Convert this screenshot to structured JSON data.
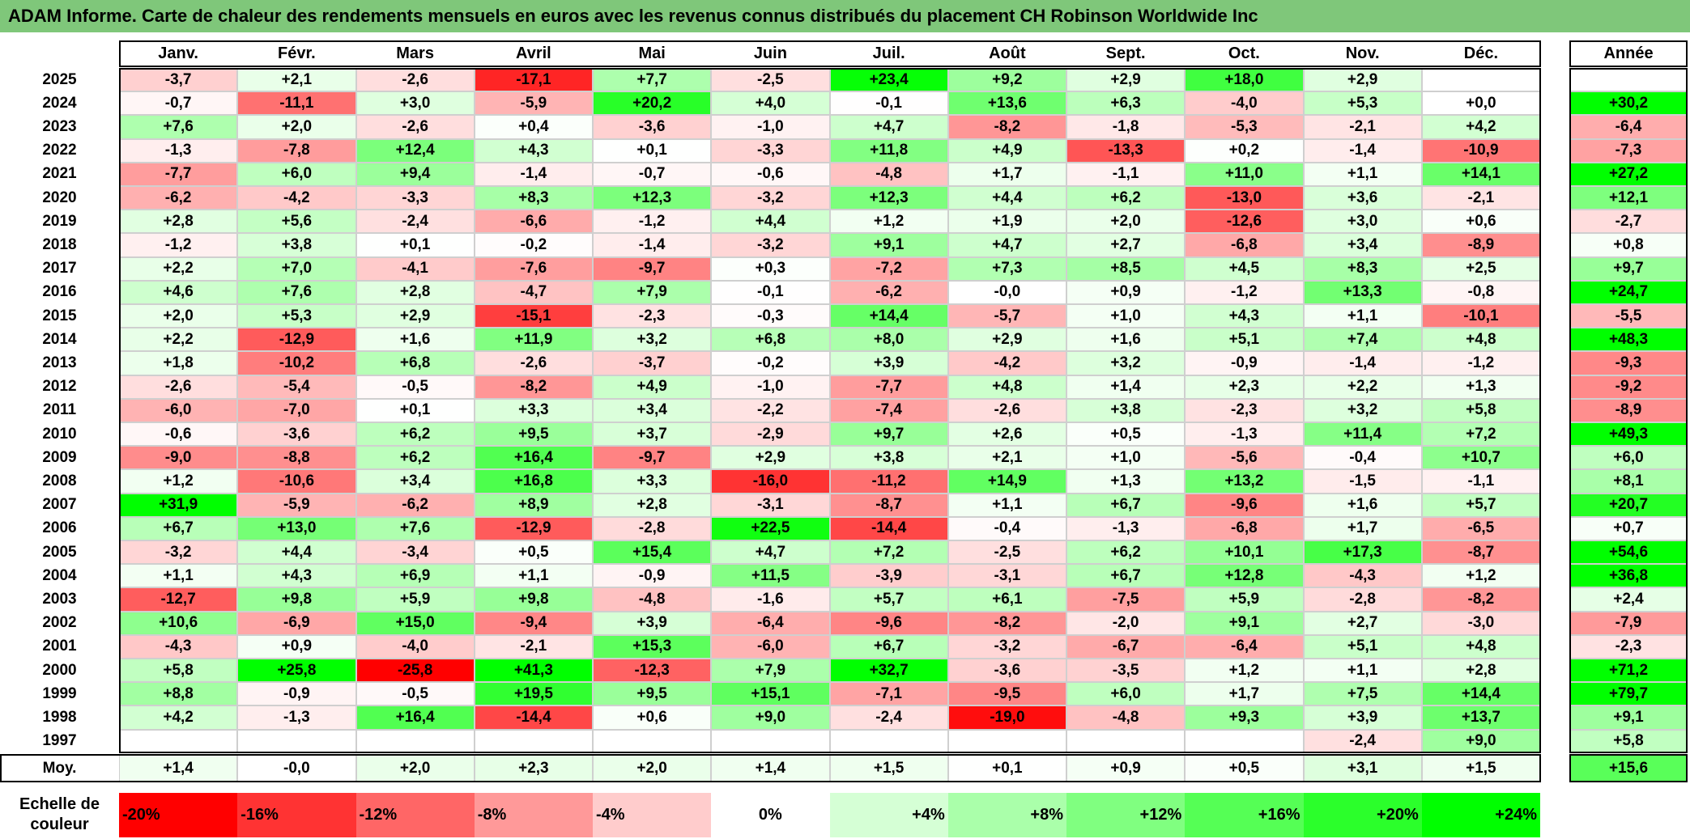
{
  "title": "ADAM Informe. Carte de chaleur des rendements mensuels en euros avec les revenus connus distribués du placement CH Robinson Worldwide Inc",
  "chart_data": {
    "type": "heatmap",
    "columns": [
      "Janv.",
      "Févr.",
      "Mars",
      "Avril",
      "Mai",
      "Juin",
      "Juil.",
      "Août",
      "Sept.",
      "Oct.",
      "Nov.",
      "Déc."
    ],
    "year_header": "Année",
    "rows": [
      {
        "year": "2025",
        "months": [
          "-3,7",
          "+2,1",
          "-2,6",
          "-17,1",
          "+7,7",
          "-2,5",
          "+23,4",
          "+9,2",
          "+2,9",
          "+18,0",
          "+2,9",
          ""
        ],
        "annual": ""
      },
      {
        "year": "2024",
        "months": [
          "-0,7",
          "-11,1",
          "+3,0",
          "-5,9",
          "+20,2",
          "+4,0",
          "-0,1",
          "+13,6",
          "+6,3",
          "-4,0",
          "+5,3",
          "+0,0"
        ],
        "annual": "+30,2"
      },
      {
        "year": "2023",
        "months": [
          "+7,6",
          "+2,0",
          "-2,6",
          "+0,4",
          "-3,6",
          "-1,0",
          "+4,7",
          "-8,2",
          "-1,8",
          "-5,3",
          "-2,1",
          "+4,2"
        ],
        "annual": "-6,4"
      },
      {
        "year": "2022",
        "months": [
          "-1,3",
          "-7,8",
          "+12,4",
          "+4,3",
          "+0,1",
          "-3,3",
          "+11,8",
          "+4,9",
          "-13,3",
          "+0,2",
          "-1,4",
          "-10,9"
        ],
        "annual": "-7,3"
      },
      {
        "year": "2021",
        "months": [
          "-7,7",
          "+6,0",
          "+9,4",
          "-1,4",
          "-0,7",
          "-0,6",
          "-4,8",
          "+1,7",
          "-1,1",
          "+11,0",
          "+1,1",
          "+14,1"
        ],
        "annual": "+27,2"
      },
      {
        "year": "2020",
        "months": [
          "-6,2",
          "-4,2",
          "-3,3",
          "+8,3",
          "+12,3",
          "-3,2",
          "+12,3",
          "+4,4",
          "+6,2",
          "-13,0",
          "+3,6",
          "-2,1"
        ],
        "annual": "+12,1"
      },
      {
        "year": "2019",
        "months": [
          "+2,8",
          "+5,6",
          "-2,4",
          "-6,6",
          "-1,2",
          "+4,4",
          "+1,2",
          "+1,9",
          "+2,0",
          "-12,6",
          "+3,0",
          "+0,6"
        ],
        "annual": "-2,7"
      },
      {
        "year": "2018",
        "months": [
          "-1,2",
          "+3,8",
          "+0,1",
          "-0,2",
          "-1,4",
          "-3,2",
          "+9,1",
          "+4,7",
          "+2,7",
          "-6,8",
          "+3,4",
          "-8,9"
        ],
        "annual": "+0,8"
      },
      {
        "year": "2017",
        "months": [
          "+2,2",
          "+7,0",
          "-4,1",
          "-7,6",
          "-9,7",
          "+0,3",
          "-7,2",
          "+7,3",
          "+8,5",
          "+4,5",
          "+8,3",
          "+2,5"
        ],
        "annual": "+9,7"
      },
      {
        "year": "2016",
        "months": [
          "+4,6",
          "+7,6",
          "+2,8",
          "-4,7",
          "+7,9",
          "-0,1",
          "-6,2",
          "-0,0",
          "+0,9",
          "-1,2",
          "+13,3",
          "-0,8"
        ],
        "annual": "+24,7"
      },
      {
        "year": "2015",
        "months": [
          "+2,0",
          "+5,3",
          "+2,9",
          "-15,1",
          "-2,3",
          "-0,3",
          "+14,4",
          "-5,7",
          "+1,0",
          "+4,3",
          "+1,1",
          "-10,1"
        ],
        "annual": "-5,5"
      },
      {
        "year": "2014",
        "months": [
          "+2,2",
          "-12,9",
          "+1,6",
          "+11,9",
          "+3,2",
          "+6,8",
          "+8,0",
          "+2,9",
          "+1,6",
          "+5,1",
          "+7,4",
          "+4,8"
        ],
        "annual": "+48,3"
      },
      {
        "year": "2013",
        "months": [
          "+1,8",
          "-10,2",
          "+6,8",
          "-2,6",
          "-3,7",
          "-0,2",
          "+3,9",
          "-4,2",
          "+3,2",
          "-0,9",
          "-1,4",
          "-1,2"
        ],
        "annual": "-9,3"
      },
      {
        "year": "2012",
        "months": [
          "-2,6",
          "-5,4",
          "-0,5",
          "-8,2",
          "+4,9",
          "-1,0",
          "-7,7",
          "+4,8",
          "+1,4",
          "+2,3",
          "+2,2",
          "+1,3"
        ],
        "annual": "-9,2"
      },
      {
        "year": "2011",
        "months": [
          "-6,0",
          "-7,0",
          "+0,1",
          "+3,3",
          "+3,4",
          "-2,2",
          "-7,4",
          "-2,6",
          "+3,8",
          "-2,3",
          "+3,2",
          "+5,8"
        ],
        "annual": "-8,9"
      },
      {
        "year": "2010",
        "months": [
          "-0,6",
          "-3,6",
          "+6,2",
          "+9,5",
          "+3,7",
          "-2,9",
          "+9,7",
          "+2,6",
          "+0,5",
          "-1,3",
          "+11,4",
          "+7,2"
        ],
        "annual": "+49,3"
      },
      {
        "year": "2009",
        "months": [
          "-9,0",
          "-8,8",
          "+6,2",
          "+16,4",
          "-9,7",
          "+2,9",
          "+3,8",
          "+2,1",
          "+1,0",
          "-5,6",
          "-0,4",
          "+10,7"
        ],
        "annual": "+6,0"
      },
      {
        "year": "2008",
        "months": [
          "+1,2",
          "-10,6",
          "+3,4",
          "+16,8",
          "+3,3",
          "-16,0",
          "-11,2",
          "+14,9",
          "+1,3",
          "+13,2",
          "-1,5",
          "-1,1"
        ],
        "annual": "+8,1"
      },
      {
        "year": "2007",
        "months": [
          "+31,9",
          "-5,9",
          "-6,2",
          "+8,9",
          "+2,8",
          "-3,1",
          "-8,7",
          "+1,1",
          "+6,7",
          "-9,6",
          "+1,6",
          "+5,7"
        ],
        "annual": "+20,7"
      },
      {
        "year": "2006",
        "months": [
          "+6,7",
          "+13,0",
          "+7,6",
          "-12,9",
          "-2,8",
          "+22,5",
          "-14,4",
          "-0,4",
          "-1,3",
          "-6,8",
          "+1,7",
          "-6,5"
        ],
        "annual": "+0,7"
      },
      {
        "year": "2005",
        "months": [
          "-3,2",
          "+4,4",
          "-3,4",
          "+0,5",
          "+15,4",
          "+4,7",
          "+7,2",
          "-2,5",
          "+6,2",
          "+10,1",
          "+17,3",
          "-8,7"
        ],
        "annual": "+54,6"
      },
      {
        "year": "2004",
        "months": [
          "+1,1",
          "+4,3",
          "+6,9",
          "+1,1",
          "-0,9",
          "+11,5",
          "-3,9",
          "-3,1",
          "+6,7",
          "+12,8",
          "-4,3",
          "+1,2"
        ],
        "annual": "+36,8"
      },
      {
        "year": "2003",
        "months": [
          "-12,7",
          "+9,8",
          "+5,9",
          "+9,8",
          "-4,8",
          "-1,6",
          "+5,7",
          "+6,1",
          "-7,5",
          "+5,9",
          "-2,8",
          "-8,2"
        ],
        "annual": "+2,4"
      },
      {
        "year": "2002",
        "months": [
          "+10,6",
          "-6,9",
          "+15,0",
          "-9,4",
          "+3,9",
          "-6,4",
          "-9,6",
          "-8,2",
          "-2,0",
          "+9,1",
          "+2,7",
          "-3,0"
        ],
        "annual": "-7,9"
      },
      {
        "year": "2001",
        "months": [
          "-4,3",
          "+0,9",
          "-4,0",
          "-2,1",
          "+15,3",
          "-6,0",
          "+6,7",
          "-3,2",
          "-6,7",
          "-6,4",
          "+5,1",
          "+4,8"
        ],
        "annual": "-2,3"
      },
      {
        "year": "2000",
        "months": [
          "+5,8",
          "+25,8",
          "-25,8",
          "+41,3",
          "-12,3",
          "+7,9",
          "+32,7",
          "-3,6",
          "-3,5",
          "+1,2",
          "+1,1",
          "+2,8"
        ],
        "annual": "+71,2"
      },
      {
        "year": "1999",
        "months": [
          "+8,8",
          "-0,9",
          "-0,5",
          "+19,5",
          "+9,5",
          "+15,1",
          "-7,1",
          "-9,5",
          "+6,0",
          "+1,7",
          "+7,5",
          "+14,4"
        ],
        "annual": "+79,7"
      },
      {
        "year": "1998",
        "months": [
          "+4,2",
          "-1,3",
          "+16,4",
          "-14,4",
          "+0,6",
          "+9,0",
          "-2,4",
          "-19,0",
          "-4,8",
          "+9,3",
          "+3,9",
          "+13,7"
        ],
        "annual": "+9,1"
      },
      {
        "year": "1997",
        "months": [
          "",
          "",
          "",
          "",
          "",
          "",
          "",
          "",
          "",
          "",
          "-2,4",
          "+9,0"
        ],
        "annual": "+5,8"
      }
    ],
    "average": {
      "label": "Moy.",
      "months": [
        "+1,4",
        "-0,0",
        "+2,0",
        "+2,3",
        "+2,0",
        "+1,4",
        "+1,5",
        "+0,1",
        "+0,9",
        "+0,5",
        "+3,1",
        "+1,5"
      ],
      "annual": "+15,6"
    },
    "legend": {
      "label_line1": "Echelle de",
      "label_line2": "couleur",
      "items": [
        {
          "label": "-20%",
          "value": -20
        },
        {
          "label": "-16%",
          "value": -16
        },
        {
          "label": "-12%",
          "value": -12
        },
        {
          "label": "-8%",
          "value": -8
        },
        {
          "label": "-4%",
          "value": -4
        },
        {
          "label": "0%",
          "value": 0
        },
        {
          "label": "+4%",
          "value": 4
        },
        {
          "label": "+8%",
          "value": 8
        },
        {
          "label": "+12%",
          "value": 12
        },
        {
          "label": "+16%",
          "value": 16
        },
        {
          "label": "+20%",
          "value": 20
        },
        {
          "label": "+24%",
          "value": 24
        }
      ]
    },
    "color_scale": {
      "min": -20,
      "max": 24,
      "negative_color": "#ff0000",
      "positive_color": "#00ff00",
      "neutral_color": "#ffffff"
    }
  }
}
